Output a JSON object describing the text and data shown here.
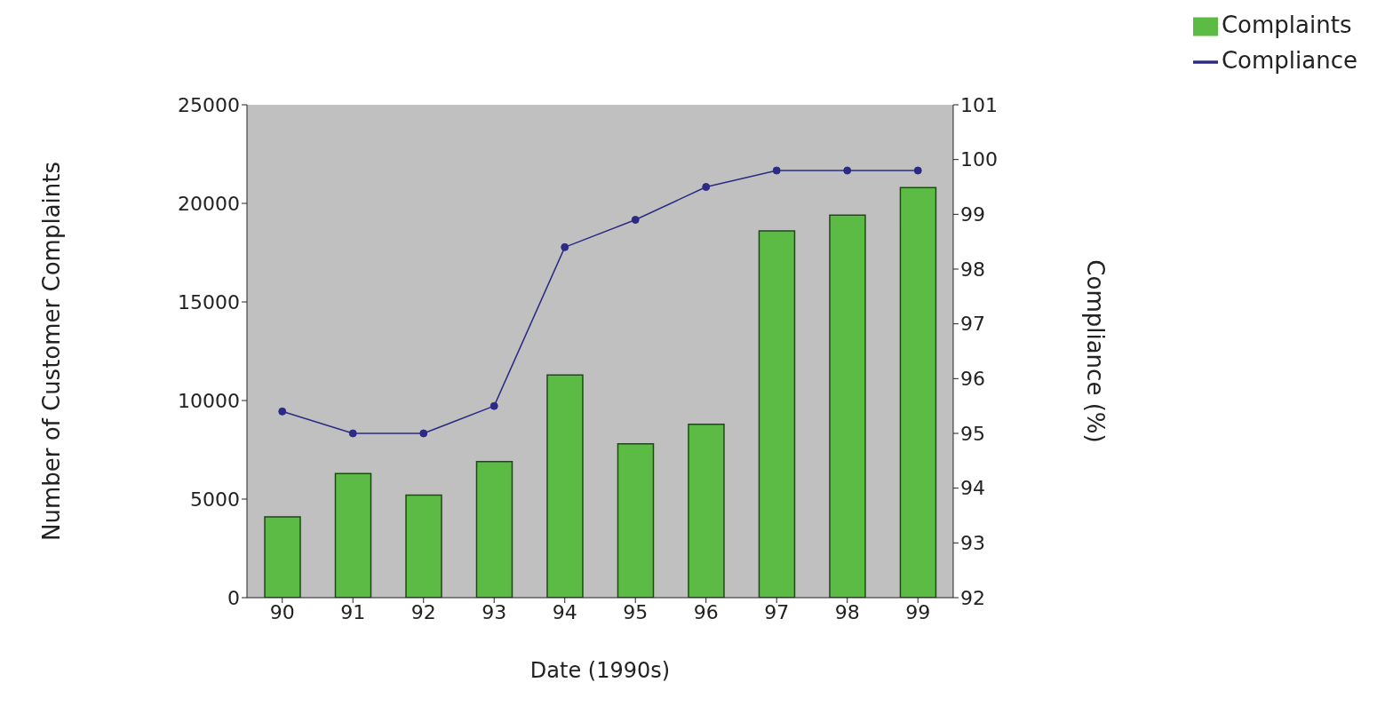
{
  "chart_data": {
    "type": "bar",
    "xlabel": "Date (1990s)",
    "ylabel": "Number of Customer Complaints",
    "y2label": "Compliance (%)",
    "categories": [
      "90",
      "91",
      "92",
      "93",
      "94",
      "95",
      "96",
      "97",
      "98",
      "99"
    ],
    "series": [
      {
        "name": "Complaints",
        "color": "#5cbb44",
        "values": [
          4100,
          6300,
          5200,
          6900,
          11300,
          7800,
          8800,
          18600,
          19400,
          20800
        ]
      },
      {
        "name": "Compliance",
        "type": "line",
        "axis": "y2",
        "color": "#2b2b84",
        "values": [
          95.4,
          95.0,
          95.0,
          95.5,
          98.4,
          98.9,
          99.5,
          99.8,
          99.8,
          99.8
        ]
      }
    ],
    "ylim": [
      0,
      25000
    ],
    "yticks": [
      0,
      5000,
      10000,
      15000,
      20000,
      25000
    ],
    "y2lim": [
      92,
      101
    ],
    "y2ticks": [
      92,
      93,
      94,
      95,
      96,
      97,
      98,
      99,
      100,
      101
    ],
    "legend": "top right",
    "marker": "circle",
    "line_style": "solid"
  }
}
